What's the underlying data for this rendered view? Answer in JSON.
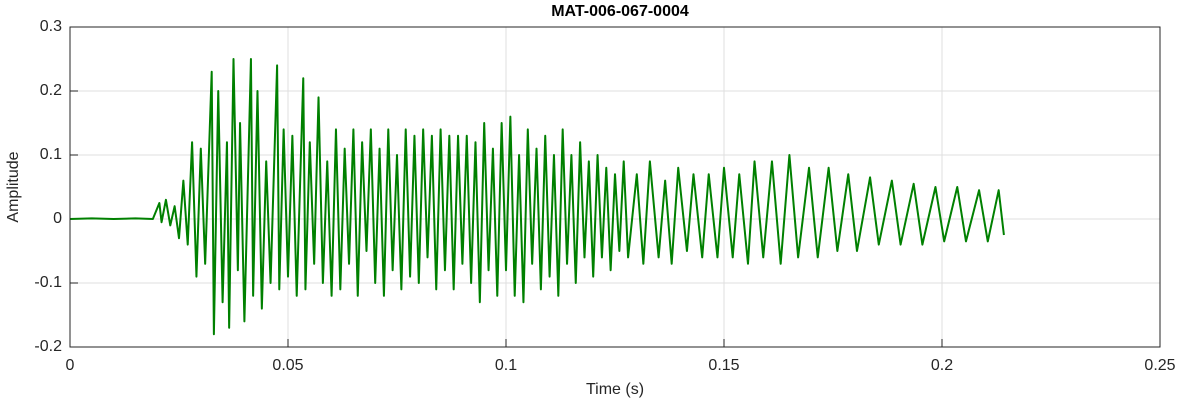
{
  "chart_data": {
    "type": "line",
    "title": "MAT-006-067-0004",
    "x_label": "Time (s)",
    "y_label": "Amplitude",
    "xlim": [
      0,
      0.25
    ],
    "ylim": [
      -0.2,
      0.3
    ],
    "xticks": [
      0,
      0.05,
      0.1,
      0.15,
      0.2,
      0.25
    ],
    "yticks": [
      -0.2,
      -0.1,
      0,
      0.1,
      0.2,
      0.3
    ],
    "grid": true,
    "series": [
      {
        "color": "#008000",
        "x": [
          0,
          0.005,
          0.01,
          0.015,
          0.019,
          0.0205,
          0.021,
          0.022,
          0.023,
          0.024,
          0.025,
          0.026,
          0.027,
          0.028,
          0.029,
          0.03,
          0.031,
          0.0325,
          0.033,
          0.034,
          0.035,
          0.036,
          0.0365,
          0.0375,
          0.0385,
          0.039,
          0.04,
          0.0415,
          0.042,
          0.043,
          0.044,
          0.045,
          0.046,
          0.0475,
          0.048,
          0.049,
          0.05,
          0.051,
          0.052,
          0.0535,
          0.054,
          0.055,
          0.056,
          0.057,
          0.058,
          0.059,
          0.06,
          0.061,
          0.062,
          0.063,
          0.064,
          0.065,
          0.066,
          0.067,
          0.068,
          0.069,
          0.07,
          0.071,
          0.072,
          0.073,
          0.074,
          0.075,
          0.076,
          0.077,
          0.078,
          0.079,
          0.08,
          0.081,
          0.082,
          0.083,
          0.084,
          0.085,
          0.086,
          0.087,
          0.088,
          0.089,
          0.09,
          0.091,
          0.092,
          0.093,
          0.094,
          0.095,
          0.096,
          0.097,
          0.098,
          0.099,
          0.1,
          0.101,
          0.102,
          0.103,
          0.104,
          0.105,
          0.106,
          0.107,
          0.108,
          0.109,
          0.11,
          0.111,
          0.112,
          0.113,
          0.114,
          0.115,
          0.116,
          0.117,
          0.118,
          0.119,
          0.12,
          0.121,
          0.122,
          0.123,
          0.124,
          0.125,
          0.126,
          0.127,
          0.128,
          0.13,
          0.1315,
          0.133,
          0.135,
          0.1365,
          0.138,
          0.1395,
          0.1415,
          0.143,
          0.145,
          0.1465,
          0.1485,
          0.15,
          0.152,
          0.1535,
          0.1555,
          0.157,
          0.159,
          0.161,
          0.163,
          0.165,
          0.167,
          0.1695,
          0.1715,
          0.174,
          0.176,
          0.1785,
          0.1805,
          0.1835,
          0.1855,
          0.1885,
          0.1905,
          0.1935,
          0.1955,
          0.1985,
          0.2005,
          0.2035,
          0.2055,
          0.2085,
          0.2105,
          0.213,
          0.2142
        ],
        "values": [
          0,
          0.001,
          0,
          0.001,
          0,
          0.025,
          -0.005,
          0.03,
          -0.01,
          0.02,
          -0.03,
          0.06,
          -0.04,
          0.12,
          -0.09,
          0.11,
          -0.07,
          0.23,
          -0.18,
          0.2,
          -0.13,
          0.12,
          -0.17,
          0.25,
          -0.08,
          0.15,
          -0.16,
          0.25,
          -0.12,
          0.2,
          -0.14,
          0.09,
          -0.1,
          0.24,
          -0.11,
          0.14,
          -0.09,
          0.13,
          -0.12,
          0.22,
          -0.11,
          0.12,
          -0.07,
          0.19,
          -0.1,
          0.09,
          -0.12,
          0.14,
          -0.11,
          0.11,
          -0.07,
          0.14,
          -0.12,
          0.12,
          -0.05,
          0.14,
          -0.1,
          0.11,
          -0.12,
          0.14,
          -0.08,
          0.1,
          -0.11,
          0.14,
          -0.09,
          0.13,
          -0.1,
          0.14,
          -0.06,
          0.13,
          -0.11,
          0.14,
          -0.08,
          0.13,
          -0.11,
          0.13,
          -0.07,
          0.13,
          -0.1,
          0.12,
          -0.13,
          0.15,
          -0.08,
          0.11,
          -0.12,
          0.15,
          -0.08,
          0.16,
          -0.12,
          0.1,
          -0.13,
          0.14,
          -0.07,
          0.11,
          -0.11,
          0.13,
          -0.09,
          0.1,
          -0.12,
          0.14,
          -0.07,
          0.1,
          -0.1,
          0.12,
          -0.06,
          0.09,
          -0.09,
          0.1,
          -0.06,
          0.08,
          -0.08,
          0.07,
          -0.05,
          0.09,
          -0.06,
          0.07,
          -0.07,
          0.09,
          -0.06,
          0.06,
          -0.07,
          0.08,
          -0.05,
          0.07,
          -0.06,
          0.07,
          -0.06,
          0.08,
          -0.06,
          0.07,
          -0.07,
          0.09,
          -0.06,
          0.09,
          -0.07,
          0.1,
          -0.06,
          0.08,
          -0.06,
          0.08,
          -0.05,
          0.07,
          -0.05,
          0.065,
          -0.04,
          0.06,
          -0.04,
          0.055,
          -0.04,
          0.05,
          -0.035,
          0.05,
          -0.035,
          0.045,
          -0.035,
          0.045,
          -0.025
        ]
      }
    ]
  }
}
